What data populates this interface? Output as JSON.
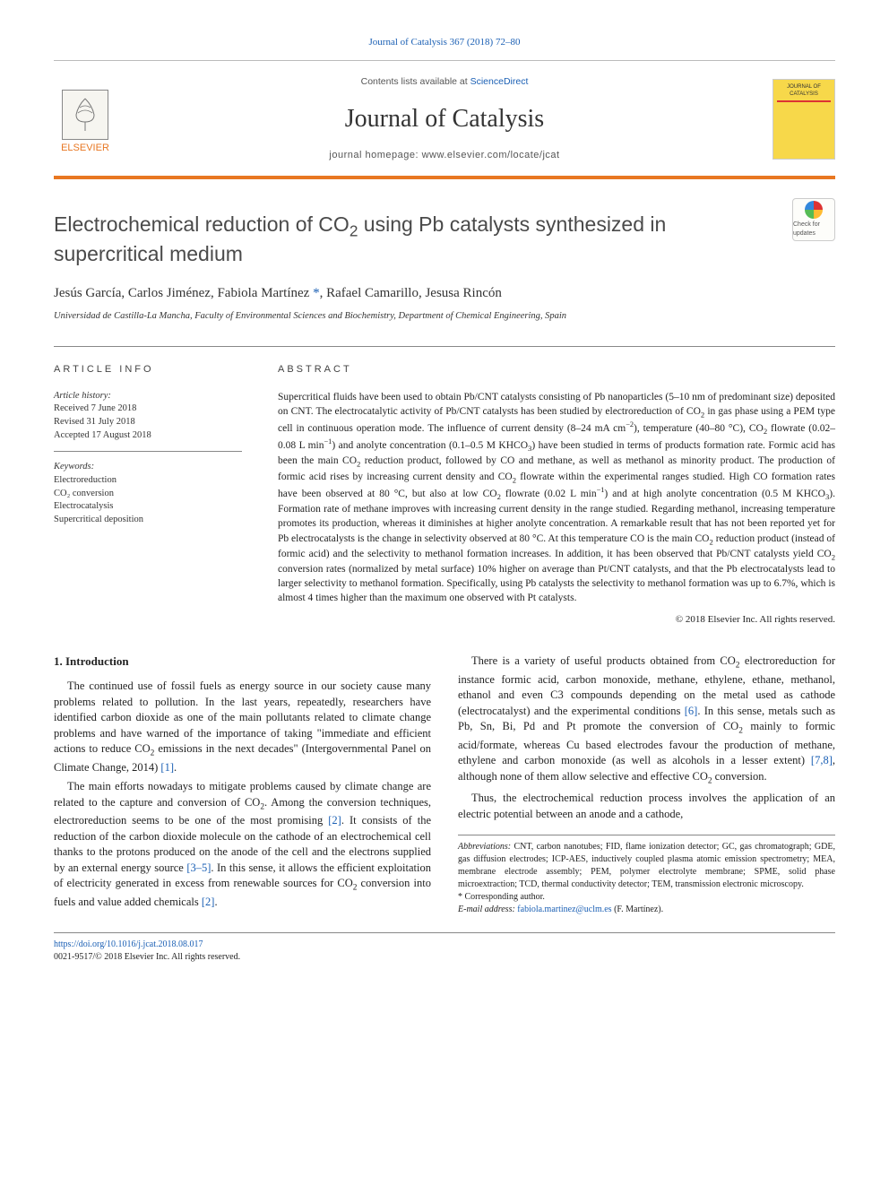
{
  "header": {
    "journal_ref": "Journal of Catalysis 367 (2018) 72–80",
    "contents_line_prefix": "Contents lists available at ",
    "contents_link": "ScienceDirect",
    "journal_title": "Journal of Catalysis",
    "homepage_prefix": "journal homepage: ",
    "homepage_url": "www.elsevier.com/locate/jcat",
    "publisher_label": "ELSEVIER",
    "cover_line1": "JOURNAL OF",
    "cover_line2": "CATALYSIS",
    "check_badge": "Check for updates",
    "colors": {
      "accent_orange": "#e87722",
      "link_blue": "#1a5fb4",
      "cover_yellow": "#f7d84a"
    }
  },
  "article": {
    "title_html": "Electrochemical reduction of CO<sub>2</sub> using Pb catalysts synthesized in supercritical medium",
    "authors_html": "Jesús García, Carlos Jiménez, Fabiola Martínez <span class=\"star\">*</span>, Rafael Camarillo, Jesusa Rincón",
    "affiliation": "Universidad de Castilla-La Mancha, Faculty of Environmental Sciences and Biochemistry, Department of Chemical Engineering, Spain"
  },
  "info": {
    "heading": "article info",
    "history_label": "Article history:",
    "history": [
      "Received 7 June 2018",
      "Revised 31 July 2018",
      "Accepted 17 August 2018"
    ],
    "keywords_label": "Keywords:",
    "keywords": [
      "Electroreduction",
      "CO₂ conversion",
      "Electrocatalysis",
      "Supercritical deposition"
    ]
  },
  "abstract": {
    "heading": "abstract",
    "text_html": "Supercritical fluids have been used to obtain Pb/CNT catalysts consisting of Pb nanoparticles (5–10 nm of predominant size) deposited on CNT. The electrocatalytic activity of Pb/CNT catalysts has been studied by electroreduction of CO<sub>2</sub> in gas phase using a PEM type cell in continuous operation mode. The influence of current density (8–24 mA cm<sup>−2</sup>), temperature (40–80 °C), CO<sub>2</sub> flowrate (0.02–0.08 L min<sup>−1</sup>) and anolyte concentration (0.1–0.5 M KHCO<sub>3</sub>) have been studied in terms of products formation rate. Formic acid has been the main CO<sub>2</sub> reduction product, followed by CO and methane, as well as methanol as minority product. The production of formic acid rises by increasing current density and CO<sub>2</sub> flowrate within the experimental ranges studied. High CO formation rates have been observed at 80 °C, but also at low CO<sub>2</sub> flowrate (0.02 L min<sup>−1</sup>) and at high anolyte concentration (0.5 M KHCO<sub>3</sub>). Formation rate of methane improves with increasing current density in the range studied. Regarding methanol, increasing temperature promotes its production, whereas it diminishes at higher anolyte concentration. A remarkable result that has not been reported yet for Pb electrocatalysts is the change in selectivity observed at 80 °C. At this temperature CO is the main CO<sub>2</sub> reduction product (instead of formic acid) and the selectivity to methanol formation increases. In addition, it has been observed that Pb/CNT catalysts yield CO<sub>2</sub> conversion rates (normalized by metal surface) 10% higher on average than Pt/CNT catalysts, and that the Pb electrocatalysts lead to larger selectivity to methanol formation. Specifically, using Pb catalysts the selectivity to methanol formation was up to 6.7%, which is almost 4 times higher than the maximum one observed with Pt catalysts.",
    "copyright": "© 2018 Elsevier Inc. All rights reserved."
  },
  "body": {
    "section_heading": "1. Introduction",
    "p1_html": "The continued use of fossil fuels as energy source in our society cause many problems related to pollution. In the last years, repeatedly, researchers have identified carbon dioxide as one of the main pollutants related to climate change problems and have warned of the importance of taking \"immediate and efficient actions to reduce CO<sub>2</sub> emissions in the next decades\" (Intergovernmental Panel on Climate Change, 2014) <a href=\"#\">[1]</a>.",
    "p2_html": "The main efforts nowadays to mitigate problems caused by climate change are related to the capture and conversion of CO<sub>2</sub>. Among the conversion techniques, electroreduction seems to be one of the most promising <a href=\"#\">[2]</a>. It consists of the reduction of the carbon dioxide molecule on the cathode of an electrochemical cell thanks to the protons produced on the anode of the cell and the electrons supplied by an external energy source <a href=\"#\">[3–5]</a>. In this sense, it allows the efficient exploitation of electricity generated in excess from renewable sources for CO<sub>2</sub> conversion into fuels and value added chemicals <a href=\"#\">[2]</a>.",
    "p3_html": "There is a variety of useful products obtained from CO<sub>2</sub> electroreduction for instance formic acid, carbon monoxide, methane, ethylene, ethane, methanol, ethanol and even C3 compounds depending on the metal used as cathode (electrocatalyst) and the experimental conditions <a href=\"#\">[6]</a>. In this sense, metals such as Pb, Sn, Bi, Pd and Pt promote the conversion of CO<sub>2</sub> mainly to formic acid/formate, whereas Cu based electrodes favour the production of methane, ethylene and carbon monoxide (as well as alcohols in a lesser extent) <a href=\"#\">[7,8]</a>, although none of them allow selective and effective CO<sub>2</sub> conversion.",
    "p4_html": "Thus, the electrochemical reduction process involves the application of an electric potential between an anode and a cathode,"
  },
  "footnotes": {
    "abbrev_label": "Abbreviations:",
    "abbrev_text": " CNT, carbon nanotubes; FID, flame ionization detector; GC, gas chromatograph; GDE, gas diffusion electrodes; ICP-AES, inductively coupled plasma atomic emission spectrometry; MEA, membrane electrode assembly; PEM, polymer electrolyte membrane; SPME, solid phase microextraction; TCD, thermal conductivity detector; TEM, transmission electronic microscopy.",
    "corr": "* Corresponding author.",
    "email_label": "E-mail address:",
    "email": "fabiola.martinez@uclm.es",
    "email_person": " (F. Martínez)."
  },
  "footer": {
    "doi": "https://doi.org/10.1016/j.jcat.2018.08.017",
    "issn_line": "0021-9517/© 2018 Elsevier Inc. All rights reserved."
  }
}
